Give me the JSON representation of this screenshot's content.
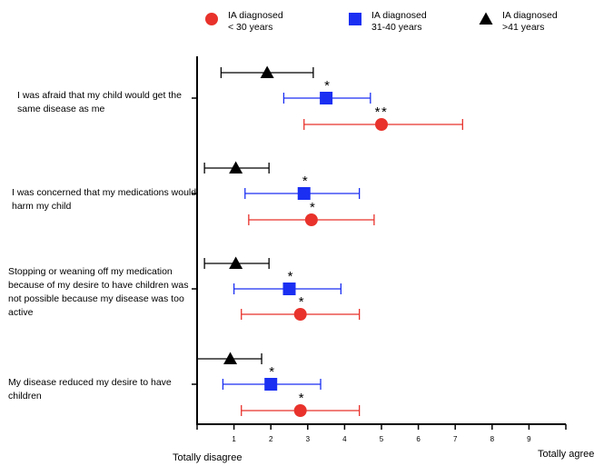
{
  "chart_data": {
    "type": "scatter",
    "orientation": "horizontal",
    "error_bars": true,
    "categories": [
      "I was afraid that my child would get the same disease as me",
      "I was concerned that my  medications would harm my child",
      "Stopping or weaning off my  medication because of my  desire to have children was not possible because my disease was too active",
      "My disease reduced my desire  to have children"
    ],
    "xlim": [
      0,
      10
    ],
    "x_ticks": [
      "1",
      "2",
      "3",
      "4",
      "5",
      "6",
      "7",
      "8",
      "9"
    ],
    "x_end_labels": {
      "left": "Totally disagree",
      "right": "Totally agree"
    },
    "legend_placement": "top",
    "grid": false,
    "series": [
      {
        "name": "IA diagnosed\n>41 years",
        "marker": "triangle",
        "color": "#000000",
        "points": [
          {
            "mean": 1.9,
            "low": 0.65,
            "high": 3.15,
            "annotation": ""
          },
          {
            "mean": 1.05,
            "low": 0.2,
            "high": 1.95,
            "annotation": ""
          },
          {
            "mean": 1.05,
            "low": 0.2,
            "high": 1.95,
            "annotation": ""
          },
          {
            "mean": 0.9,
            "low": 0.0,
            "high": 1.75,
            "annotation": ""
          }
        ]
      },
      {
        "name": "IA diagnosed\n31-40 years",
        "marker": "square",
        "color": "#1a2ff2",
        "points": [
          {
            "mean": 3.5,
            "low": 2.35,
            "high": 4.7,
            "annotation": "*"
          },
          {
            "mean": 2.9,
            "low": 1.3,
            "high": 4.4,
            "annotation": "*"
          },
          {
            "mean": 2.5,
            "low": 1.0,
            "high": 3.9,
            "annotation": "*"
          },
          {
            "mean": 2.0,
            "low": 0.7,
            "high": 3.35,
            "annotation": "*"
          }
        ]
      },
      {
        "name": "IA diagnosed\n< 30 years",
        "marker": "circle",
        "color": "#e8322b",
        "points": [
          {
            "mean": 5.0,
            "low": 2.9,
            "high": 7.2,
            "annotation": "**"
          },
          {
            "mean": 3.1,
            "low": 1.4,
            "high": 4.8,
            "annotation": "*"
          },
          {
            "mean": 2.8,
            "low": 1.2,
            "high": 4.4,
            "annotation": "*"
          },
          {
            "mean": 2.8,
            "low": 1.2,
            "high": 4.4,
            "annotation": "*"
          }
        ]
      }
    ]
  }
}
